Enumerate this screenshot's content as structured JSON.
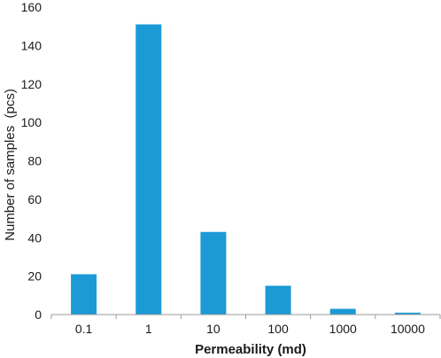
{
  "chart_data": {
    "type": "bar",
    "title": "",
    "xlabel": "Permeability (md)",
    "ylabel": "Number of samples  (pcs)",
    "categories": [
      "0.1",
      "1",
      "10",
      "100",
      "1000",
      "10000"
    ],
    "values": [
      21,
      151,
      43,
      15,
      3,
      1
    ],
    "ylim": [
      0,
      160
    ],
    "yticks": [
      "0",
      "20",
      "40",
      "60",
      "80",
      "100",
      "120",
      "140",
      "160"
    ],
    "grid": false,
    "legend": "none",
    "bar_color": "#1b9ad6"
  }
}
